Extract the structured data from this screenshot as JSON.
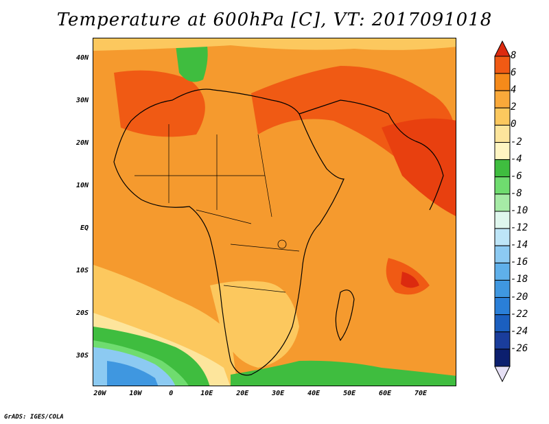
{
  "title": "Temperature at 600hPa [C], VT: 2017091018",
  "credit": "GrADS: IGES/COLA",
  "lat_labels": [
    {
      "text": "40N",
      "lat": 40
    },
    {
      "text": "30N",
      "lat": 30
    },
    {
      "text": "20N",
      "lat": 20
    },
    {
      "text": "10N",
      "lat": 10
    },
    {
      "text": "EQ",
      "lat": 0
    },
    {
      "text": "10S",
      "lat": -10
    },
    {
      "text": "20S",
      "lat": -20
    },
    {
      "text": "30S",
      "lat": -30
    }
  ],
  "lon_labels": [
    {
      "text": "20W",
      "lon": -20
    },
    {
      "text": "10W",
      "lon": -10
    },
    {
      "text": "0",
      "lon": 0
    },
    {
      "text": "10E",
      "lon": 10
    },
    {
      "text": "20E",
      "lon": 20
    },
    {
      "text": "30E",
      "lon": 30
    },
    {
      "text": "40E",
      "lon": 40
    },
    {
      "text": "50E",
      "lon": 50
    },
    {
      "text": "60E",
      "lon": 60
    },
    {
      "text": "70E",
      "lon": 70
    }
  ],
  "map_extent": {
    "lon_min": -22,
    "lon_max": 80,
    "lat_min": -37,
    "lat_max": 45
  },
  "colorbar": {
    "labels": [
      "8",
      "6",
      "4",
      "2",
      "0",
      "-2",
      "-4",
      "-6",
      "-8",
      "-10",
      "-12",
      "-14",
      "-16",
      "-18",
      "-20",
      "-22",
      "-24",
      "-26"
    ],
    "colors": [
      "#dc2a0f",
      "#f05a14",
      "#f58a1a",
      "#faa93a",
      "#fcc85e",
      "#fde59c",
      "#fff5c2",
      "#3fbd3f",
      "#6fdc6f",
      "#a6eba6",
      "#dff7ee",
      "#bde5f7",
      "#8ccaf2",
      "#5fb0ea",
      "#3f97e0",
      "#2a7fd8",
      "#1b5fbf",
      "#1a3d9c",
      "#0c1f6e",
      "#e6e0f5"
    ]
  }
}
